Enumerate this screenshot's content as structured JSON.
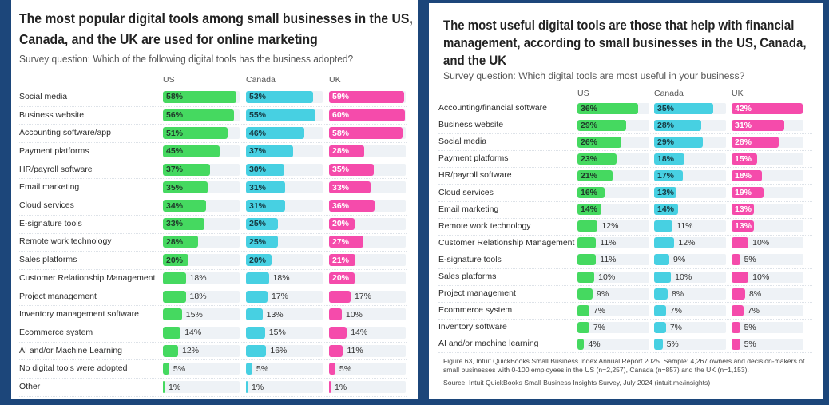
{
  "colors": {
    "background": "#1c467a",
    "US": "#45d960",
    "Canada": "#47d0e2",
    "UK": "#f54bab",
    "track": "#eef2f6"
  },
  "chart_data": [
    {
      "type": "bar",
      "orientation": "horizontal",
      "title": "The most popular digital tools among small businesses in the US, Canada, and the UK are used for online marketing",
      "subtitle": "Survey question: Which of the following digital tools has the business adopted?",
      "categories": [
        "Social media",
        "Business website",
        "Accounting software/app",
        "Payment platforms",
        "HR/payroll software",
        "Email marketing",
        "Cloud services",
        "E-signature tools",
        "Remote work technology",
        "Sales platforms",
        "Customer Relationship Management",
        "Project management",
        "Inventory management software",
        "Ecommerce system",
        "AI and/or Machine Learning",
        "No digital tools were adopted",
        "Other"
      ],
      "series": [
        {
          "name": "US",
          "values": [
            58,
            56,
            51,
            45,
            37,
            35,
            34,
            33,
            28,
            20,
            18,
            18,
            15,
            14,
            12,
            5,
            1
          ]
        },
        {
          "name": "Canada",
          "values": [
            53,
            55,
            46,
            37,
            30,
            31,
            31,
            25,
            25,
            20,
            18,
            17,
            13,
            15,
            16,
            5,
            1
          ]
        },
        {
          "name": "UK",
          "values": [
            59,
            60,
            58,
            28,
            35,
            33,
            36,
            20,
            27,
            21,
            20,
            17,
            10,
            14,
            11,
            5,
            1
          ]
        }
      ],
      "unit": "%",
      "xlim": [
        0,
        60
      ]
    },
    {
      "type": "bar",
      "orientation": "horizontal",
      "title": "The most useful digital tools are those that help with financial management, according to small businesses in the US, Canada, and the UK",
      "subtitle": "Survey question: Which digital tools are most useful in your business?",
      "categories": [
        "Accounting/financial software",
        "Business website",
        "Social media",
        "Payment platforms",
        "HR/payroll software",
        "Cloud services",
        "Email marketing",
        "Remote work technology",
        "Customer Relationship Management",
        "E-signature tools",
        "Sales platforms",
        "Project management",
        "Ecommerce system",
        "Inventory software",
        "AI and/or machine learning"
      ],
      "series": [
        {
          "name": "US",
          "values": [
            36,
            29,
            26,
            23,
            21,
            16,
            14,
            12,
            11,
            11,
            10,
            9,
            7,
            7,
            4
          ]
        },
        {
          "name": "Canada",
          "values": [
            35,
            28,
            29,
            18,
            17,
            13,
            14,
            11,
            12,
            9,
            10,
            8,
            7,
            7,
            5
          ]
        },
        {
          "name": "UK",
          "values": [
            42,
            31,
            28,
            15,
            18,
            19,
            13,
            13,
            10,
            5,
            10,
            8,
            7,
            5,
            5
          ]
        }
      ],
      "unit": "%",
      "xlim": [
        0,
        42
      ],
      "footnote": "Figure 63, Intuit QuickBooks Small Business Index Annual Report 2025. Sample: 4,267 owners and decision-makers of small businesses with 0-100 employees in the US (n=2,257), Canada (n=857) and the UK (n=1,153).",
      "source": "Source: Intuit QuickBooks Small Business Insights Survey, July 2024 (intuit.me/insights)"
    }
  ]
}
